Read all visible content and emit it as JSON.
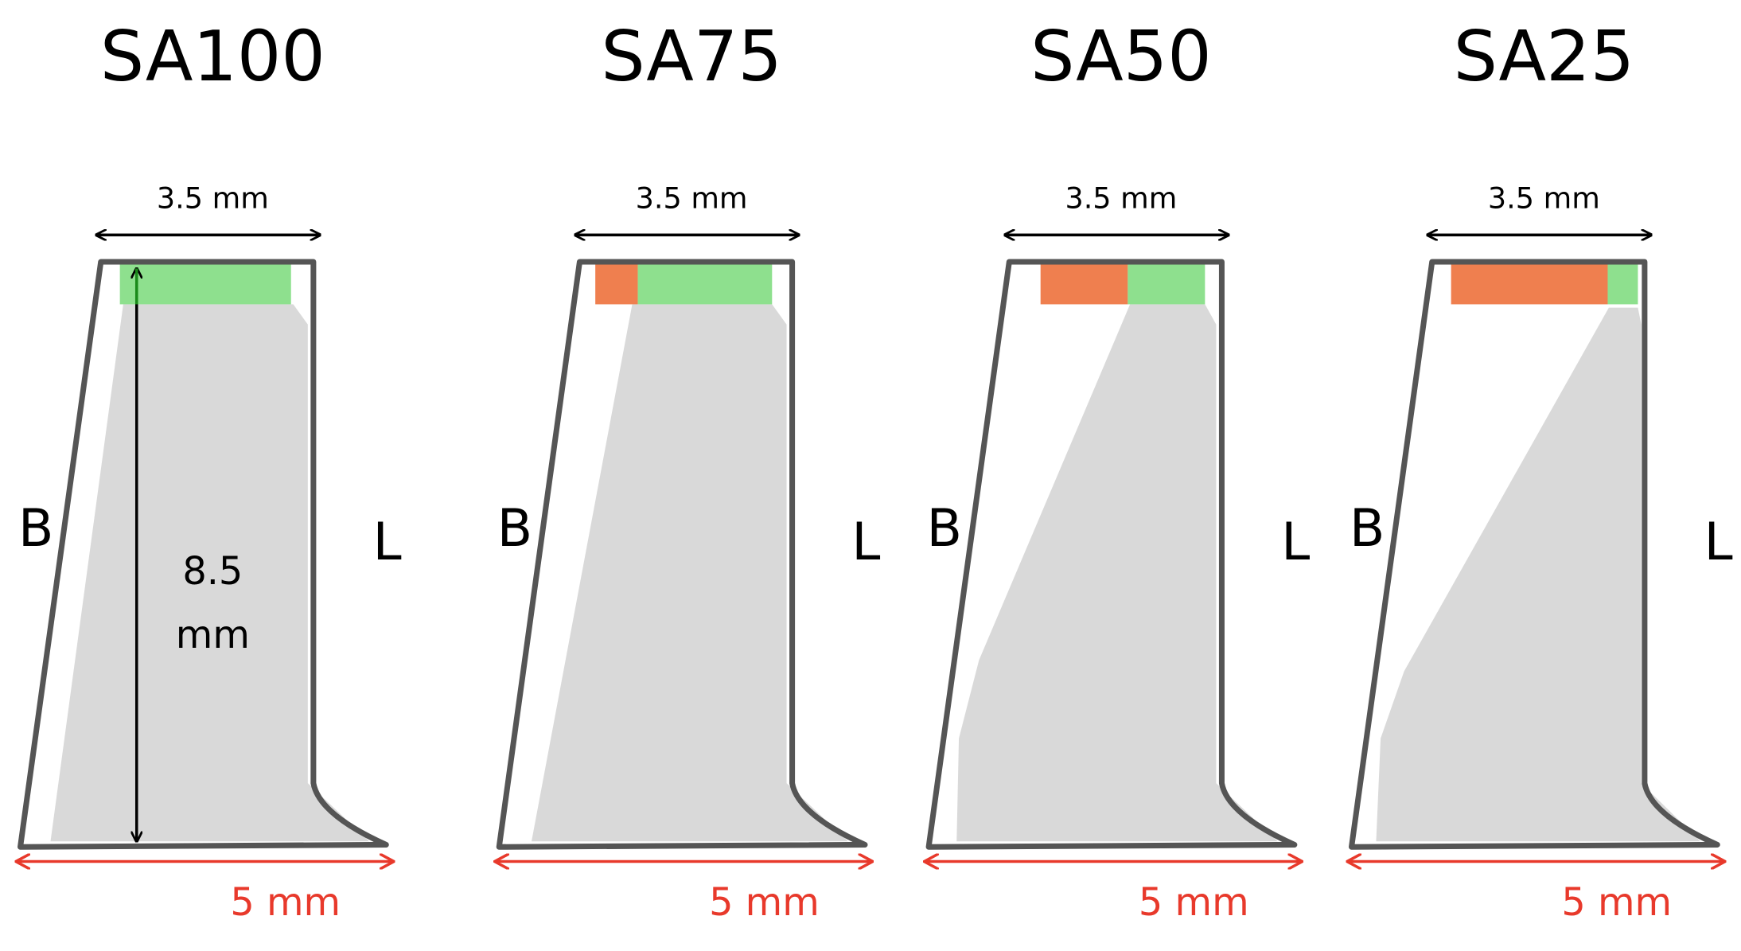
{
  "panels": [
    {
      "title": "SA100",
      "width_label": "3.5 mm",
      "left_label": "B",
      "right_label": "L",
      "base_label": "5 mm",
      "height_label_lines": [
        "8.5",
        "mm"
      ]
    },
    {
      "title": "SA75",
      "width_label": "3.5 mm",
      "left_label": "B",
      "right_label": "L",
      "base_label": "5 mm"
    },
    {
      "title": "SA50",
      "width_label": "3.5 mm",
      "left_label": "B",
      "right_label": "L",
      "base_label": "5 mm"
    },
    {
      "title": "SA25",
      "width_label": "3.5 mm",
      "left_label": "B",
      "right_label": "L",
      "base_label": "5 mm"
    }
  ]
}
